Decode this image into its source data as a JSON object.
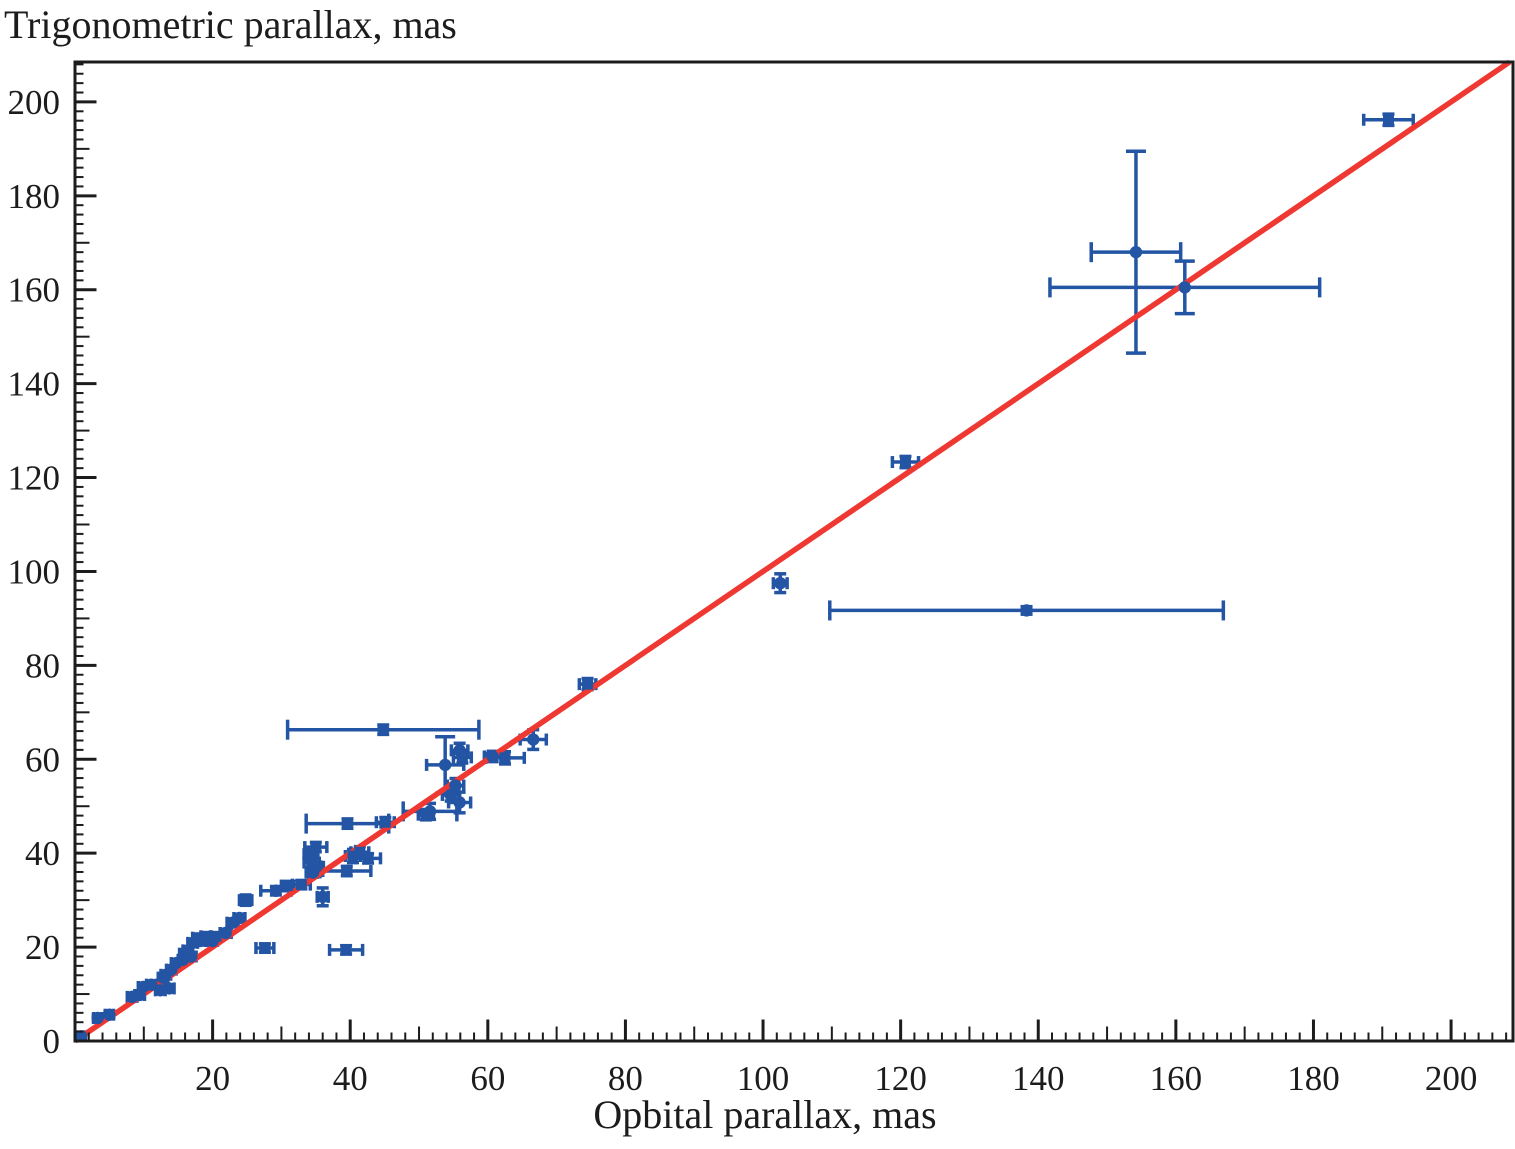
{
  "figure": {
    "title": "Trigonometric parallax, mas",
    "xlabel": "Opbital parallax, mas"
  },
  "chart_data": {
    "type": "scatter",
    "title": "Trigonometric parallax, mas",
    "xlabel": "Opbital parallax, mas",
    "ylabel": "Trigonometric parallax, mas",
    "x_unit": "mas",
    "y_unit": "mas",
    "xlim": [
      0,
      209
    ],
    "ylim": [
      0,
      208.5
    ],
    "x_tick_labels": [
      20,
      40,
      60,
      80,
      100,
      120,
      140,
      160,
      180,
      200
    ],
    "y_tick_labels": [
      0,
      20,
      40,
      60,
      80,
      100,
      120,
      140,
      160,
      180,
      200
    ],
    "major_tick_step": 20,
    "medium_tick_step": 10,
    "minor_tick_step": 2,
    "grid": false,
    "legend_position": "none",
    "marker_color": "#2355a4",
    "line_color": "#ee3831",
    "axis_color": "#1c1c1c",
    "fit_line": {
      "name": "identity-line y = x",
      "x": [
        0,
        208.5
      ],
      "y": [
        0,
        208.5
      ]
    },
    "points": [
      {
        "x": 0.9,
        "y": 1.0,
        "ex": 0.5,
        "ey": 0.5,
        "m": "c"
      },
      {
        "x": 3.3,
        "y": 4.9,
        "ex": 0.6,
        "ey": 0.6,
        "m": "c"
      },
      {
        "x": 5.0,
        "y": 5.6,
        "ex": 0.6,
        "ey": 0.6,
        "m": "c"
      },
      {
        "x": 8.3,
        "y": 9.4,
        "ex": 0.7,
        "ey": 0.7,
        "m": "c"
      },
      {
        "x": 9.4,
        "y": 9.8,
        "ex": 0.7,
        "ey": 0.7,
        "m": "c"
      },
      {
        "x": 9.9,
        "y": 11.5,
        "ex": 0.7,
        "ey": 0.7,
        "m": "c"
      },
      {
        "x": 11.1,
        "y": 12.0,
        "ex": 0.7,
        "ey": 0.7,
        "m": "c"
      },
      {
        "x": 12.4,
        "y": 10.8,
        "ex": 0.7,
        "ey": 0.7,
        "m": "c"
      },
      {
        "x": 13.7,
        "y": 11.2,
        "ex": 0.7,
        "ey": 0.7,
        "m": "c"
      },
      {
        "x": 12.8,
        "y": 13.5,
        "ex": 0.7,
        "ey": 0.7,
        "m": "c"
      },
      {
        "x": 13.2,
        "y": 14.1,
        "ex": 0.7,
        "ey": 0.7,
        "m": "c"
      },
      {
        "x": 14.0,
        "y": 15.2,
        "ex": 0.7,
        "ey": 0.7,
        "m": "c"
      },
      {
        "x": 14.7,
        "y": 16.6,
        "ex": 0.7,
        "ey": 0.7,
        "m": "c"
      },
      {
        "x": 15.7,
        "y": 17.3,
        "ex": 0.7,
        "ey": 0.7,
        "m": "c"
      },
      {
        "x": 15.9,
        "y": 18.6,
        "ex": 0.7,
        "ey": 0.7,
        "m": "c"
      },
      {
        "x": 16.4,
        "y": 19.3,
        "ex": 0.7,
        "ey": 0.7,
        "m": "c"
      },
      {
        "x": 16.9,
        "y": 18.0,
        "ex": 0.7,
        "ey": 0.7,
        "m": "c"
      },
      {
        "x": 17.1,
        "y": 20.9,
        "ex": 0.7,
        "ey": 0.7,
        "m": "c"
      },
      {
        "x": 17.8,
        "y": 22.0,
        "ex": 0.7,
        "ey": 0.7,
        "m": "s"
      },
      {
        "x": 18.2,
        "y": 21.3,
        "ex": 0.7,
        "ey": 0.7,
        "m": "c"
      },
      {
        "x": 19.0,
        "y": 22.3,
        "ex": 0.7,
        "ey": 0.7,
        "m": "s"
      },
      {
        "x": 20.0,
        "y": 21.3,
        "ex": 0.7,
        "ey": 0.7,
        "m": "c"
      },
      {
        "x": 20.5,
        "y": 22.3,
        "ex": 0.7,
        "ey": 0.7,
        "m": "s"
      },
      {
        "x": 21.9,
        "y": 23.0,
        "ex": 0.8,
        "ey": 0.8,
        "m": "c"
      },
      {
        "x": 22.9,
        "y": 25.2,
        "ex": 0.8,
        "ey": 0.8,
        "m": "c"
      },
      {
        "x": 23.9,
        "y": 26.2,
        "ex": 0.8,
        "ey": 0.8,
        "m": "c"
      },
      {
        "x": 24.8,
        "y": 30.0,
        "ex": 0.9,
        "ey": 1.1,
        "m": "c"
      },
      {
        "x": 27.6,
        "y": 19.8,
        "ex": 1.3,
        "ey": 0.9,
        "m": "s"
      },
      {
        "x": 39.4,
        "y": 19.4,
        "ex": 2.4,
        "ey": 0.9,
        "m": "s"
      },
      {
        "x": 29.2,
        "y": 32.0,
        "ex": 2.2,
        "ey": 0.9,
        "m": "c"
      },
      {
        "x": 30.9,
        "y": 33.1,
        "ex": 0.9,
        "ey": 0.9,
        "m": "s"
      },
      {
        "x": 32.9,
        "y": 33.3,
        "ex": 1.3,
        "ey": 0.9,
        "m": "s"
      },
      {
        "x": 36.0,
        "y": 30.7,
        "ex": 0.8,
        "ey": 1.9,
        "m": "c"
      },
      {
        "x": 34.3,
        "y": 39.8,
        "ex": 1.0,
        "ey": 1.2,
        "m": "s"
      },
      {
        "x": 34.4,
        "y": 38.0,
        "ex": 1.1,
        "ey": 1.0,
        "m": "s"
      },
      {
        "x": 34.6,
        "y": 35.9,
        "ex": 1.0,
        "ey": 1.0,
        "m": "c"
      },
      {
        "x": 35.0,
        "y": 41.3,
        "ex": 1.6,
        "ey": 1.0,
        "m": "s"
      },
      {
        "x": 35.1,
        "y": 37.1,
        "ex": 1.0,
        "ey": 1.0,
        "m": "c"
      },
      {
        "x": 39.5,
        "y": 36.2,
        "ex": 3.5,
        "ey": 1.0,
        "m": "c"
      },
      {
        "x": 40.4,
        "y": 39.4,
        "ex": 1.1,
        "ey": 1.4,
        "m": "s"
      },
      {
        "x": 41.4,
        "y": 40.2,
        "ex": 1.3,
        "ey": 1.2,
        "m": "s"
      },
      {
        "x": 42.6,
        "y": 38.9,
        "ex": 1.8,
        "ey": 1.0,
        "m": "s"
      },
      {
        "x": 39.6,
        "y": 46.3,
        "ex": 6.0,
        "ey": 1.0,
        "m": "c"
      },
      {
        "x": 45.1,
        "y": 46.6,
        "ex": 1.3,
        "ey": 1.0,
        "m": "s"
      },
      {
        "x": 44.8,
        "y": 66.3,
        "ex": 13.9,
        "ey": 1.0,
        "m": "c"
      },
      {
        "x": 51.0,
        "y": 48.2,
        "ex": 1.1,
        "ey": 1.1,
        "m": "c"
      },
      {
        "x": 51.6,
        "y": 48.9,
        "ex": 3.9,
        "ey": 1.7,
        "m": "c"
      },
      {
        "x": 54.6,
        "y": 52.4,
        "ex": 1.2,
        "ey": 1.3,
        "m": "c"
      },
      {
        "x": 55.3,
        "y": 54.4,
        "ex": 1.2,
        "ey": 1.5,
        "m": "c"
      },
      {
        "x": 55.9,
        "y": 50.8,
        "ex": 1.6,
        "ey": 2.2,
        "m": "c"
      },
      {
        "x": 53.8,
        "y": 58.8,
        "ex": 2.7,
        "ey": 6.0,
        "m": "c"
      },
      {
        "x": 55.9,
        "y": 61.9,
        "ex": 1.2,
        "ey": 1.5,
        "m": "c"
      },
      {
        "x": 56.3,
        "y": 60.4,
        "ex": 1.3,
        "ey": 1.2,
        "m": "s"
      },
      {
        "x": 60.7,
        "y": 60.6,
        "ex": 1.2,
        "ey": 1.1,
        "m": "c"
      },
      {
        "x": 62.5,
        "y": 60.3,
        "ex": 2.8,
        "ey": 1.3,
        "m": "s"
      },
      {
        "x": 66.6,
        "y": 64.2,
        "ex": 1.9,
        "ey": 2.1,
        "m": "c"
      },
      {
        "x": 74.5,
        "y": 76.0,
        "ex": 1.2,
        "ey": 1.2,
        "m": "s"
      },
      {
        "x": 102.5,
        "y": 97.5,
        "ex": 1.0,
        "ey": 2.0,
        "m": "c"
      },
      {
        "x": 120.7,
        "y": 123.3,
        "ex": 1.9,
        "ey": 1.2,
        "m": "s"
      },
      {
        "x": 138.3,
        "y": 91.7,
        "ex": 28.6,
        "ey": 0.8,
        "m": "c"
      },
      {
        "x": 154.2,
        "y": 168.0,
        "ex": 6.5,
        "ey": 21.5,
        "m": "c"
      },
      {
        "x": 161.3,
        "y": 160.5,
        "ex": 19.6,
        "ey": 5.6,
        "m": "c"
      },
      {
        "x": 190.9,
        "y": 196.2,
        "ex": 3.6,
        "ey": 1.2,
        "m": "s"
      }
    ]
  }
}
